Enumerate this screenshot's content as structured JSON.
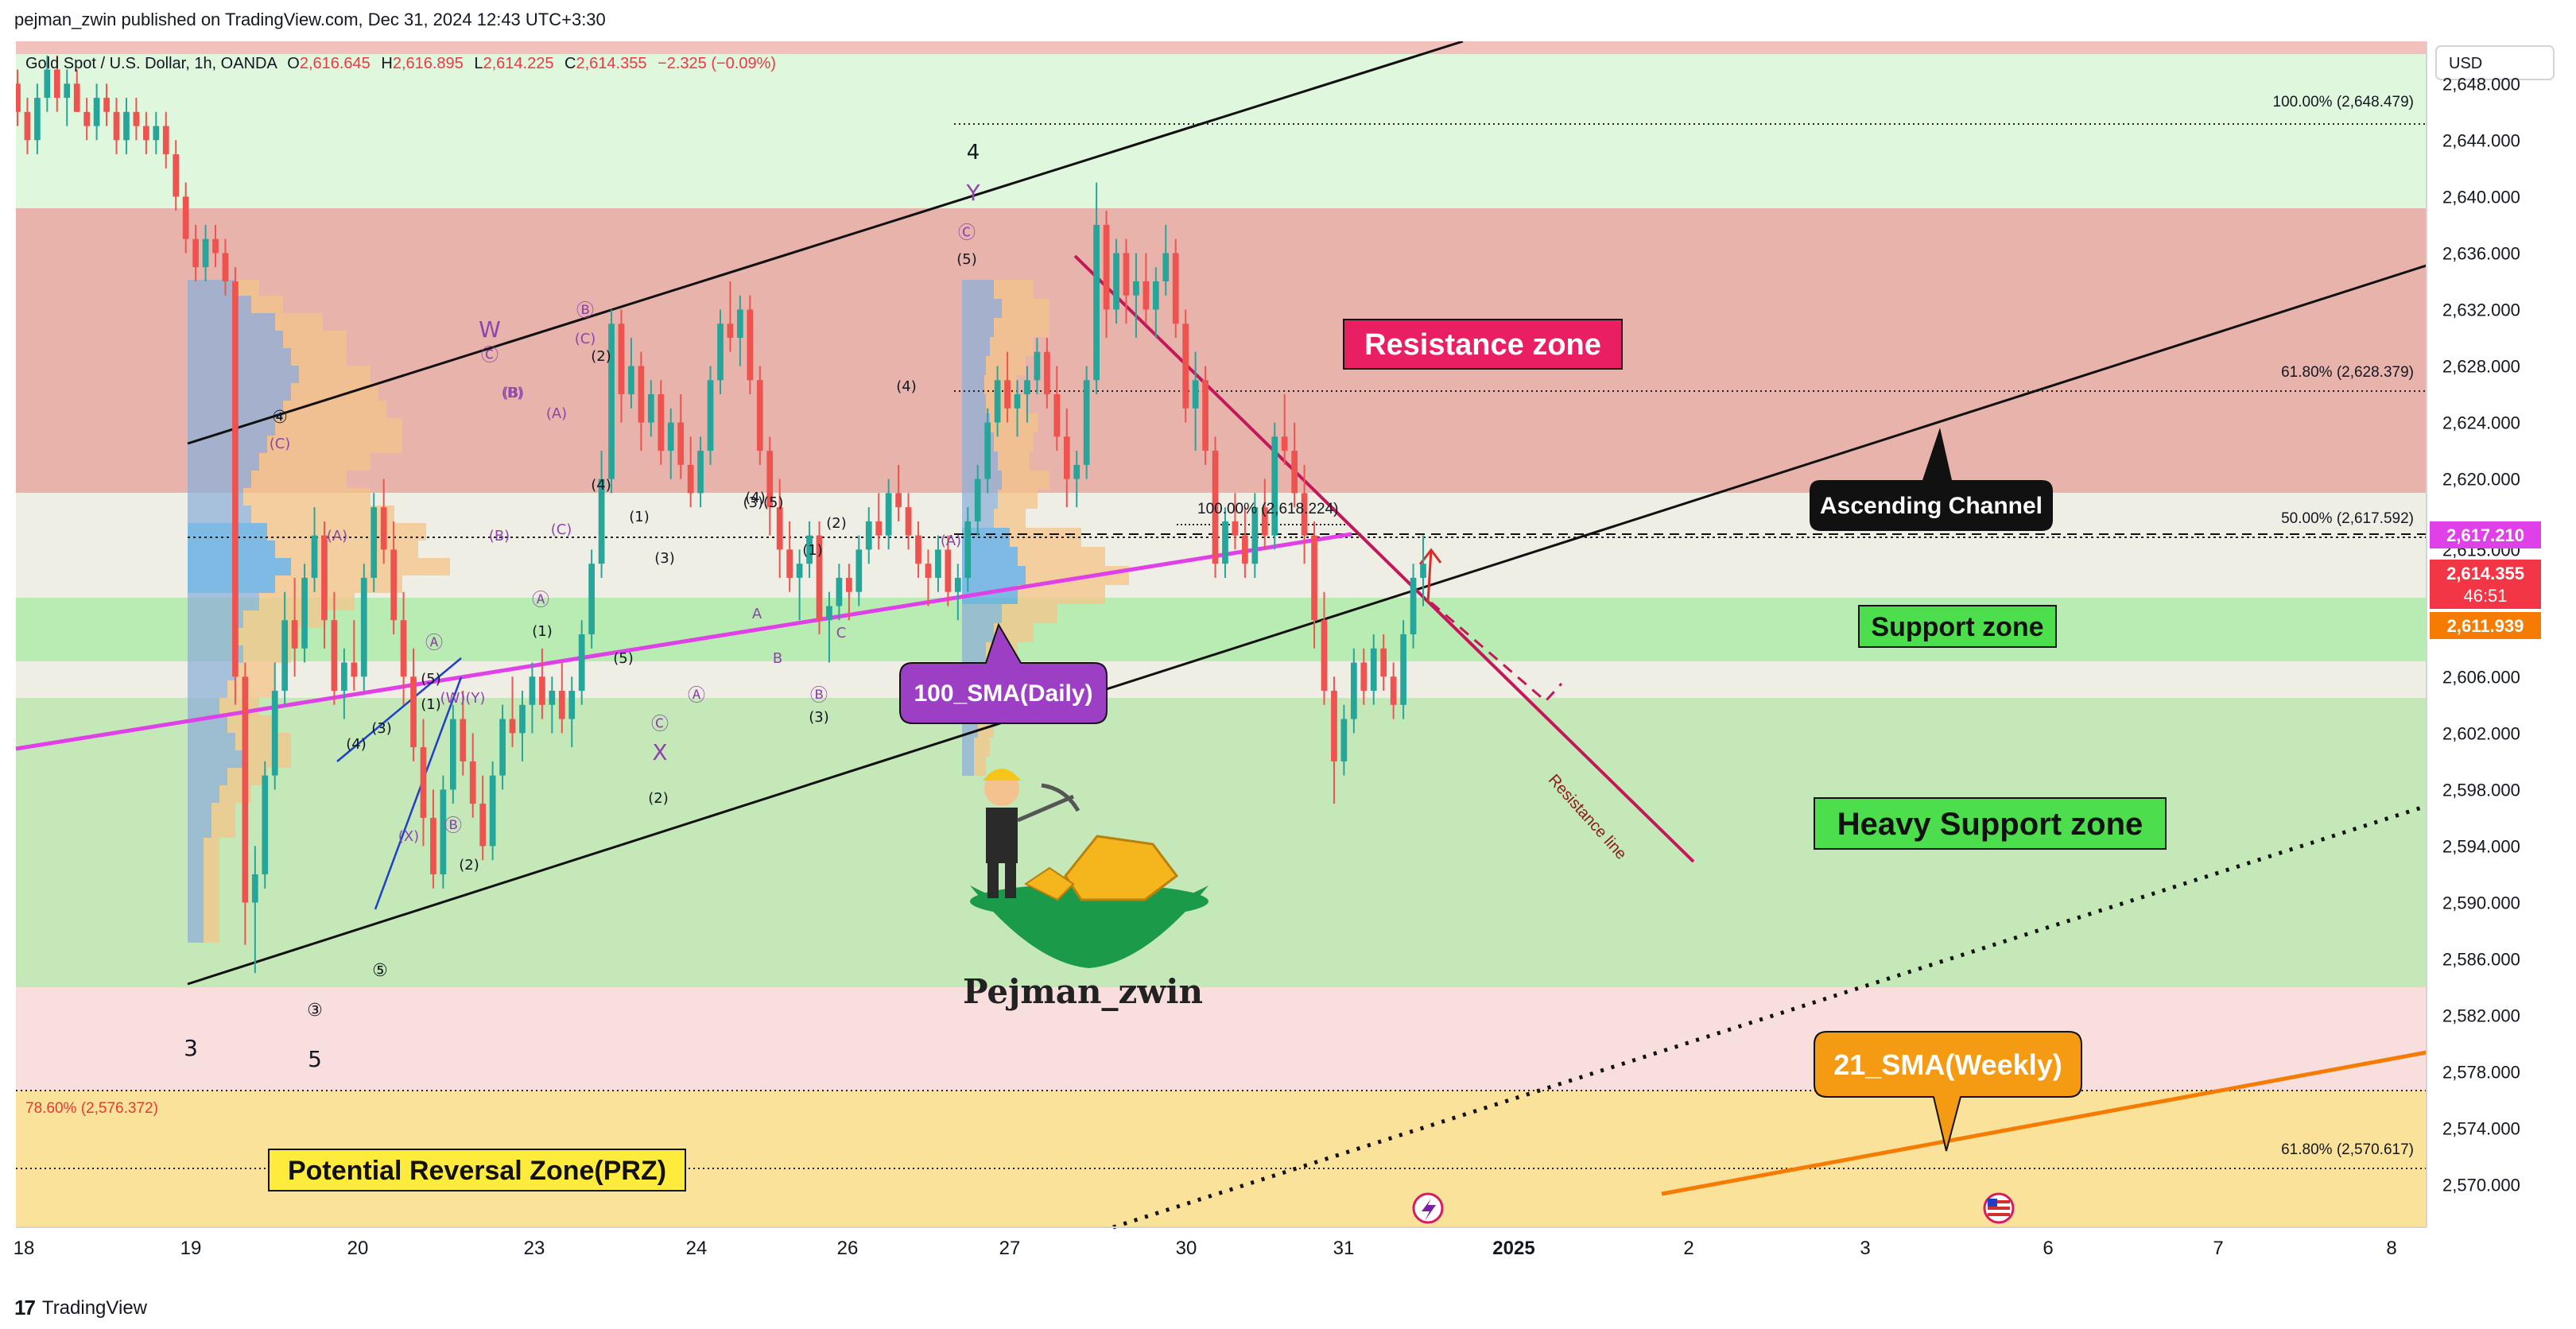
{
  "header": {
    "publisher": "pejman_zwin published on TradingView.com, Dec 31, 2024 12:43 UTC+3:30"
  },
  "footer": {
    "brand": "TradingView",
    "logo_glyph": "17"
  },
  "colors": {
    "up": "#26a69a",
    "down": "#ef5350",
    "resistance_zone": "#e8b3ab",
    "support_zone": "#b9ecb2",
    "heavy_support": "#c4e8b8",
    "top_green": "#dff7dc",
    "prz": "#fbe29a",
    "pink_band": "#f8dedd",
    "magenta_line": "#e040e8",
    "sma21": "#f57c00",
    "resistance_line": "#c2185b"
  },
  "chart_data": {
    "type": "candlestick",
    "symbol_info": {
      "name": "Gold Spot / U.S. Dollar, 1h, OANDA",
      "open_label": "O",
      "open": "2,616.645",
      "high_label": "H",
      "high": "2,616.895",
      "low_label": "L",
      "low": "2,614.225",
      "close_label": "C",
      "close": "2,614.355",
      "change": "−2.325 (−0.09%)"
    },
    "currency": "USD",
    "y_axis": {
      "min": 2567,
      "max": 2651,
      "ticks": [
        "2,570.000",
        "2,574.000",
        "2,578.000",
        "2,582.000",
        "2,586.000",
        "2,590.000",
        "2,594.000",
        "2,598.000",
        "2,602.000",
        "2,606.000",
        "2,615.000",
        "2,620.000",
        "2,624.000",
        "2,628.000",
        "2,632.000",
        "2,636.000",
        "2,640.000",
        "2,644.000",
        "2,648.000"
      ]
    },
    "x_axis": {
      "ticks": [
        "18",
        "19",
        "20",
        "23",
        "24",
        "26",
        "27",
        "30",
        "31",
        "2025",
        "2",
        "3",
        "6",
        "7",
        "8"
      ]
    },
    "price_labels": [
      {
        "value": "2,617.210",
        "color": "#e040e8"
      },
      {
        "value": "2,614.355",
        "color": "#f23645"
      },
      {
        "value": "46:51",
        "color": "#f23645"
      },
      {
        "value": "2,611.939",
        "color": "#f57c00"
      }
    ],
    "candles": [
      [
        2648,
        2649,
        2645,
        2646
      ],
      [
        2646,
        2647,
        2643,
        2644
      ],
      [
        2644,
        2648,
        2643,
        2647
      ],
      [
        2647,
        2650,
        2646,
        2649
      ],
      [
        2649,
        2650,
        2646,
        2647
      ],
      [
        2647,
        2649,
        2645,
        2648
      ],
      [
        2648,
        2649,
        2646,
        2646
      ],
      [
        2646,
        2647,
        2644,
        2645
      ],
      [
        2645,
        2648,
        2644,
        2647
      ],
      [
        2647,
        2648,
        2645,
        2646
      ],
      [
        2646,
        2647,
        2643,
        2644
      ],
      [
        2644,
        2647,
        2643,
        2646
      ],
      [
        2646,
        2647,
        2644,
        2645
      ],
      [
        2645,
        2646,
        2643,
        2644
      ],
      [
        2644,
        2646,
        2643,
        2645
      ],
      [
        2645,
        2646,
        2642,
        2643
      ],
      [
        2643,
        2644,
        2639,
        2640
      ],
      [
        2640,
        2641,
        2636,
        2637
      ],
      [
        2637,
        2638,
        2634,
        2635
      ],
      [
        2635,
        2638,
        2634,
        2637
      ],
      [
        2637,
        2638,
        2635,
        2636
      ],
      [
        2636,
        2637,
        2633,
        2634
      ],
      [
        2634,
        2635,
        2604,
        2606
      ],
      [
        2606,
        2607,
        2587,
        2590
      ],
      [
        2590,
        2594,
        2585,
        2592
      ],
      [
        2592,
        2600,
        2591,
        2599
      ],
      [
        2599,
        2607,
        2598,
        2605
      ],
      [
        2605,
        2612,
        2604,
        2610
      ],
      [
        2610,
        2613,
        2606,
        2608
      ],
      [
        2608,
        2614,
        2607,
        2613
      ],
      [
        2613,
        2618,
        2612,
        2616
      ],
      [
        2616,
        2617,
        2608,
        2610
      ],
      [
        2610,
        2612,
        2604,
        2605
      ],
      [
        2605,
        2608,
        2603,
        2607
      ],
      [
        2607,
        2610,
        2605,
        2606
      ],
      [
        2606,
        2614,
        2605,
        2613
      ],
      [
        2613,
        2619,
        2612,
        2618
      ],
      [
        2618,
        2620,
        2614,
        2615
      ],
      [
        2615,
        2617,
        2609,
        2610
      ],
      [
        2610,
        2612,
        2604,
        2606
      ],
      [
        2606,
        2608,
        2600,
        2601
      ],
      [
        2601,
        2603,
        2594,
        2596
      ],
      [
        2596,
        2598,
        2591,
        2592
      ],
      [
        2592,
        2599,
        2591,
        2598
      ],
      [
        2598,
        2604,
        2597,
        2603
      ],
      [
        2603,
        2605,
        2599,
        2600
      ],
      [
        2600,
        2602,
        2596,
        2597
      ],
      [
        2597,
        2599,
        2593,
        2594
      ],
      [
        2594,
        2600,
        2593,
        2599
      ],
      [
        2599,
        2604,
        2598,
        2603
      ],
      [
        2603,
        2606,
        2601,
        2602
      ],
      [
        2602,
        2605,
        2600,
        2604
      ],
      [
        2604,
        2607,
        2602,
        2606
      ],
      [
        2606,
        2608,
        2603,
        2604
      ],
      [
        2604,
        2606,
        2602,
        2605
      ],
      [
        2605,
        2607,
        2602,
        2603
      ],
      [
        2603,
        2606,
        2601,
        2605
      ],
      [
        2605,
        2610,
        2604,
        2609
      ],
      [
        2609,
        2615,
        2608,
        2614
      ],
      [
        2614,
        2622,
        2613,
        2620
      ],
      [
        2620,
        2632,
        2619,
        2631
      ],
      [
        2631,
        2632,
        2624,
        2626
      ],
      [
        2626,
        2630,
        2625,
        2628
      ],
      [
        2628,
        2629,
        2622,
        2624
      ],
      [
        2624,
        2627,
        2623,
        2626
      ],
      [
        2626,
        2627,
        2621,
        2622
      ],
      [
        2622,
        2625,
        2620,
        2624
      ],
      [
        2624,
        2626,
        2620,
        2621
      ],
      [
        2621,
        2623,
        2618,
        2619
      ],
      [
        2619,
        2623,
        2618,
        2622
      ],
      [
        2622,
        2628,
        2621,
        2627
      ],
      [
        2627,
        2632,
        2626,
        2631
      ],
      [
        2631,
        2634,
        2629,
        2630
      ],
      [
        2630,
        2633,
        2628,
        2632
      ],
      [
        2632,
        2633,
        2626,
        2627
      ],
      [
        2627,
        2628,
        2621,
        2622
      ],
      [
        2622,
        2623,
        2616,
        2618
      ],
      [
        2618,
        2620,
        2613,
        2615
      ],
      [
        2615,
        2617,
        2612,
        2613
      ],
      [
        2613,
        2615,
        2610,
        2614
      ],
      [
        2614,
        2617,
        2613,
        2616
      ],
      [
        2616,
        2617,
        2609,
        2610
      ],
      [
        2610,
        2612,
        2607,
        2611
      ],
      [
        2611,
        2614,
        2610,
        2613
      ],
      [
        2613,
        2614,
        2610,
        2612
      ],
      [
        2612,
        2616,
        2611,
        2615
      ],
      [
        2615,
        2618,
        2614,
        2617
      ],
      [
        2617,
        2619,
        2615,
        2616
      ],
      [
        2616,
        2620,
        2615,
        2619
      ],
      [
        2619,
        2621,
        2617,
        2618
      ],
      [
        2618,
        2619,
        2615,
        2616
      ],
      [
        2616,
        2617,
        2613,
        2614
      ],
      [
        2614,
        2615,
        2611,
        2613
      ],
      [
        2613,
        2616,
        2612,
        2615
      ],
      [
        2615,
        2616,
        2611,
        2612
      ],
      [
        2612,
        2614,
        2610,
        2613
      ],
      [
        2613,
        2618,
        2612,
        2617
      ],
      [
        2617,
        2621,
        2616,
        2620
      ],
      [
        2620,
        2625,
        2619,
        2624
      ],
      [
        2624,
        2628,
        2623,
        2627
      ],
      [
        2627,
        2629,
        2624,
        2625
      ],
      [
        2625,
        2627,
        2623,
        2626
      ],
      [
        2626,
        2628,
        2624,
        2627
      ],
      [
        2627,
        2630,
        2626,
        2629
      ],
      [
        2629,
        2630,
        2625,
        2626
      ],
      [
        2626,
        2628,
        2622,
        2623
      ],
      [
        2623,
        2625,
        2618,
        2620
      ],
      [
        2620,
        2622,
        2618,
        2621
      ],
      [
        2621,
        2628,
        2620,
        2627
      ],
      [
        2627,
        2641,
        2626,
        2638
      ],
      [
        2638,
        2639,
        2630,
        2632
      ],
      [
        2632,
        2637,
        2631,
        2636
      ],
      [
        2636,
        2637,
        2631,
        2633
      ],
      [
        2633,
        2636,
        2630,
        2634
      ],
      [
        2634,
        2636,
        2631,
        2632
      ],
      [
        2632,
        2635,
        2630,
        2634
      ],
      [
        2634,
        2638,
        2633,
        2636
      ],
      [
        2636,
        2637,
        2630,
        2631
      ],
      [
        2631,
        2632,
        2624,
        2625
      ],
      [
        2625,
        2629,
        2622,
        2627
      ],
      [
        2627,
        2628,
        2621,
        2622
      ],
      [
        2622,
        2623,
        2613,
        2614
      ],
      [
        2614,
        2618,
        2613,
        2617
      ],
      [
        2617,
        2619,
        2615,
        2616
      ],
      [
        2616,
        2618,
        2613,
        2614
      ],
      [
        2614,
        2619,
        2613,
        2618
      ],
      [
        2618,
        2620,
        2615,
        2616
      ],
      [
        2616,
        2624,
        2615,
        2623
      ],
      [
        2623,
        2626,
        2621,
        2622
      ],
      [
        2622,
        2624,
        2618,
        2619
      ],
      [
        2619,
        2621,
        2614,
        2616
      ],
      [
        2616,
        2617,
        2608,
        2610
      ],
      [
        2610,
        2612,
        2604,
        2605
      ],
      [
        2605,
        2606,
        2597,
        2600
      ],
      [
        2600,
        2604,
        2599,
        2603
      ],
      [
        2603,
        2608,
        2602,
        2607
      ],
      [
        2607,
        2608,
        2604,
        2605
      ],
      [
        2605,
        2609,
        2604,
        2608
      ],
      [
        2608,
        2609,
        2605,
        2606
      ],
      [
        2606,
        2607,
        2603,
        2604
      ],
      [
        2604,
        2610,
        2603,
        2609
      ],
      [
        2609,
        2614,
        2608,
        2613
      ],
      [
        2613,
        2616,
        2611,
        2614
      ]
    ],
    "fib_levels": [
      {
        "label": "100.00% (2,648.479)"
      },
      {
        "label": "61.80% (2,628.379)"
      },
      {
        "label": "50.00% (2,617.592)"
      },
      {
        "label": "100.00% (2,618.224)"
      },
      {
        "label": "78.60% (2,576.372)"
      },
      {
        "label": "61.80% (2,570.617)"
      }
    ],
    "zones": {
      "resistance": "Resistance zone",
      "support": "Support zone",
      "heavy_support": "Heavy Support zone",
      "prz": "Potential Reversal Zone(PRZ)",
      "channel": "Ascending Channel",
      "sma_daily": "100_SMA(Daily)",
      "sma_weekly": "21_SMA(Weekly)",
      "resistance_line": "Resistance line"
    },
    "author": "Pejman_zwin",
    "wave_labels": [
      {
        "t": "4",
        "c": "#131722",
        "s": 26
      },
      {
        "t": "Y",
        "c": "#8e44ad",
        "s": 28
      },
      {
        "t": "Ⓒ",
        "c": "#8e44ad",
        "s": 22
      },
      {
        "t": "(5)",
        "c": "#131722",
        "s": 18
      },
      {
        "t": "W",
        "c": "#8e44ad",
        "s": 28
      },
      {
        "t": "Ⓒ",
        "c": "#8e44ad",
        "s": 22
      },
      {
        "t": "Ⓑ",
        "c": "#8e44ad",
        "s": 22
      },
      {
        "t": "(C)",
        "c": "#8e44ad",
        "s": 18
      },
      {
        "t": "(2)",
        "c": "#131722",
        "s": 18
      },
      {
        "t": "④",
        "c": "#131722",
        "s": 22
      },
      {
        "t": "(C)",
        "c": "#8e44ad",
        "s": 18
      },
      {
        "t": "(B)",
        "c": "#8e44ad",
        "s": 18
      },
      {
        "t": "(A)",
        "c": "#8e44ad",
        "s": 18
      },
      {
        "t": "(A)",
        "c": "#8e44ad",
        "s": 18
      },
      {
        "t": "(B)",
        "c": "#8e44ad",
        "s": 18
      },
      {
        "t": "(C)",
        "c": "#8e44ad",
        "s": 18
      },
      {
        "t": "Ⓐ",
        "c": "#8e44ad",
        "s": 22
      },
      {
        "t": "(1)",
        "c": "#131722",
        "s": 18
      },
      {
        "t": "(4)",
        "c": "#131722",
        "s": 18
      },
      {
        "t": "(1)",
        "c": "#131722",
        "s": 18
      },
      {
        "t": "(3)",
        "c": "#131722",
        "s": 18
      },
      {
        "t": "(5)",
        "c": "#131722",
        "s": 18
      },
      {
        "t": "Ⓒ",
        "c": "#8e44ad",
        "s": 22
      },
      {
        "t": "X",
        "c": "#8e44ad",
        "s": 28
      },
      {
        "t": "(2)",
        "c": "#131722",
        "s": 18
      },
      {
        "t": "Ⓐ",
        "c": "#8e44ad",
        "s": 22
      },
      {
        "t": "(3)(5)",
        "c": "#131722",
        "s": 18
      },
      {
        "t": "(4)",
        "c": "#131722",
        "s": 18
      },
      {
        "t": "A",
        "c": "#8e44ad",
        "s": 18
      },
      {
        "t": "B",
        "c": "#8e44ad",
        "s": 18
      },
      {
        "t": "(1)",
        "c": "#131722",
        "s": 18
      },
      {
        "t": "(2)",
        "c": "#131722",
        "s": 18
      },
      {
        "t": "C",
        "c": "#8e44ad",
        "s": 18
      },
      {
        "t": "Ⓑ",
        "c": "#8e44ad",
        "s": 22
      },
      {
        "t": "(3)",
        "c": "#131722",
        "s": 18
      },
      {
        "t": "(4)",
        "c": "#131722",
        "s": 18
      },
      {
        "t": "(A)",
        "c": "#8e44ad",
        "s": 18
      },
      {
        "t": "(B)",
        "c": "#8e44ad",
        "s": 18
      },
      {
        "t": "Ⓐ",
        "c": "#8e44ad",
        "s": 22
      },
      {
        "t": "(5)",
        "c": "#131722",
        "s": 18
      },
      {
        "t": "(3)",
        "c": "#131722",
        "s": 18
      },
      {
        "t": "(1)",
        "c": "#131722",
        "s": 18
      },
      {
        "t": "(4)",
        "c": "#131722",
        "s": 18
      },
      {
        "t": "(X)",
        "c": "#8e44ad",
        "s": 18
      },
      {
        "t": "(W)(Y)",
        "c": "#8e44ad",
        "s": 18
      },
      {
        "t": "Ⓑ",
        "c": "#8e44ad",
        "s": 22
      },
      {
        "t": "(2)",
        "c": "#131722",
        "s": 18
      },
      {
        "t": "⑤",
        "c": "#131722",
        "s": 22
      },
      {
        "t": "③",
        "c": "#131722",
        "s": 22
      },
      {
        "t": "3",
        "c": "#131722",
        "s": 28
      },
      {
        "t": "5",
        "c": "#131722",
        "s": 28
      }
    ]
  }
}
